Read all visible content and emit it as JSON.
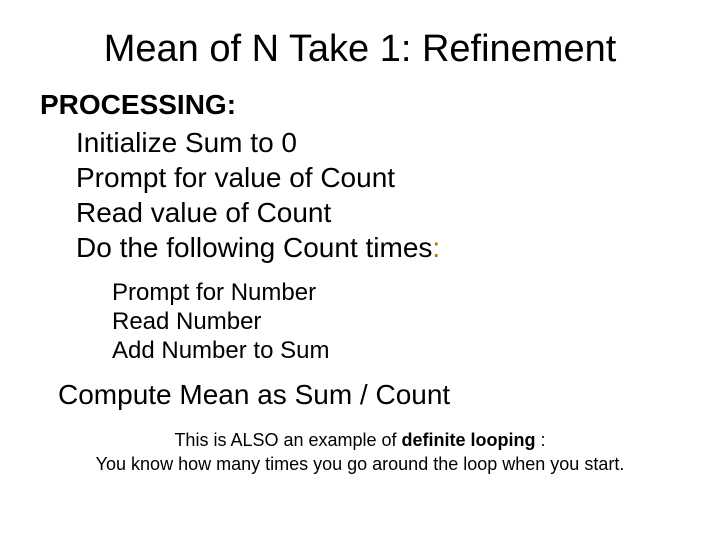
{
  "title": "Mean of N Take 1: Refinement",
  "heading": "PROCESSING:",
  "steps": {
    "s1": "Initialize Sum to 0",
    "s2": "Prompt for value of Count",
    "s3": "Read value of Count",
    "s4_text": "Do the following Count times",
    "s4_colon": ":"
  },
  "substeps": {
    "ss1": "Prompt for Number",
    "ss2": "Read Number",
    "ss3": "Add Number to Sum"
  },
  "compute": "Compute Mean as Sum / Count",
  "footer": {
    "line1_pre": "This is ALSO an example of ",
    "line1_term": "definite looping",
    "line1_post": " :",
    "line2": "You know how many times you go around the loop when you start."
  },
  "colors": {
    "text": "#000000",
    "colon_highlight": "#cc6600",
    "background": "#ffffff"
  },
  "typography": {
    "title_fontsize": 38,
    "body_fontsize": 28,
    "sub_fontsize": 24,
    "footer_fontsize": 18,
    "font_family": "Arial"
  }
}
